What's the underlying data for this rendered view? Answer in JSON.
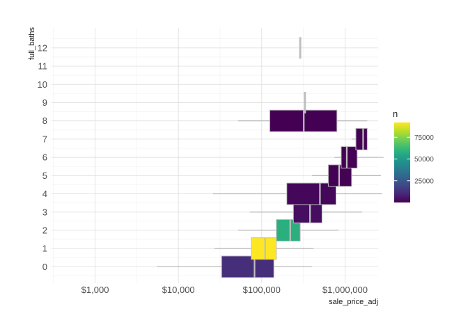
{
  "chart_data": {
    "type": "boxplot",
    "xlabel": "sale_price_adj",
    "ylabel": "full_baths",
    "x_scale": "log10",
    "xlim": [
      300,
      2500000
    ],
    "x_ticks": [
      1000,
      10000,
      100000,
      1000000
    ],
    "x_tick_labels": [
      "$1,000",
      "$10,000",
      "$100,000",
      "$1,000,000"
    ],
    "y_ticks": [
      0,
      1,
      2,
      3,
      4,
      5,
      6,
      7,
      8,
      9,
      10,
      11,
      12
    ],
    "y_tick_labels": [
      "0",
      "1",
      "2",
      "3",
      "4",
      "5",
      "6",
      "7",
      "8",
      "9",
      "10",
      "11",
      "12"
    ],
    "ylim": [
      -0.9,
      13.1
    ],
    "grid": true,
    "legend": {
      "title": "n",
      "position": "right",
      "type": "colorbar",
      "breaks": [
        25000,
        50000,
        75000
      ],
      "break_labels": [
        "25000",
        "50000",
        "75000"
      ],
      "range": [
        1,
        92000
      ],
      "palette": "viridis"
    },
    "colors": {
      "whisker": "#b3b3b3",
      "box_outline": "#bfbfbf",
      "median": "#bfbfbf",
      "grid_major": "#e0e0e0",
      "grid_minor": "#f0f0f0"
    },
    "boxes": [
      {
        "category": "0",
        "whisker_low": 5500,
        "q1": 33000,
        "median": 82000,
        "q3": 140000,
        "whisker_high": 400000,
        "n": 12000
      },
      {
        "category": "1",
        "whisker_low": 27000,
        "q1": 75000,
        "median": 110000,
        "q3": 150000,
        "whisker_high": 420000,
        "n": 92000
      },
      {
        "category": "2",
        "whisker_low": 52000,
        "q1": 150000,
        "median": 220000,
        "q3": 290000,
        "whisker_high": 830000,
        "n": 58000
      },
      {
        "category": "3",
        "whisker_low": 72000,
        "q1": 240000,
        "median": 380000,
        "q3": 530000,
        "whisker_high": 1600000,
        "n": 3500
      },
      {
        "category": "4",
        "whisker_low": 26000,
        "q1": 200000,
        "median": 500000,
        "q3": 780000,
        "whisker_high": 2800000,
        "n": 1500
      },
      {
        "category": "5",
        "whisker_low": 400000,
        "q1": 630000,
        "median": 850000,
        "q3": 1200000,
        "whisker_high": 2700000,
        "n": 300
      },
      {
        "category": "6",
        "whisker_low": 750000,
        "q1": 900000,
        "median": 1050000,
        "q3": 1400000,
        "whisker_high": 2900000,
        "n": 100
      },
      {
        "category": "7",
        "whisker_low": 1200000,
        "q1": 1350000,
        "median": 1650000,
        "q3": 1850000,
        "whisker_high": 1900000,
        "n": 20
      },
      {
        "category": "8",
        "whisker_low": 52000,
        "q1": 125000,
        "median": 320000,
        "q3": 800000,
        "whisker_high": 1850000,
        "n": 10
      },
      {
        "category": "9",
        "whisker_low": 330000,
        "q1": 330000,
        "median": 330000,
        "q3": 330000,
        "whisker_high": 330000,
        "n": 1
      },
      {
        "category": "12",
        "whisker_low": 290000,
        "q1": 290000,
        "median": 290000,
        "q3": 290000,
        "whisker_high": 290000,
        "n": 1
      }
    ]
  }
}
